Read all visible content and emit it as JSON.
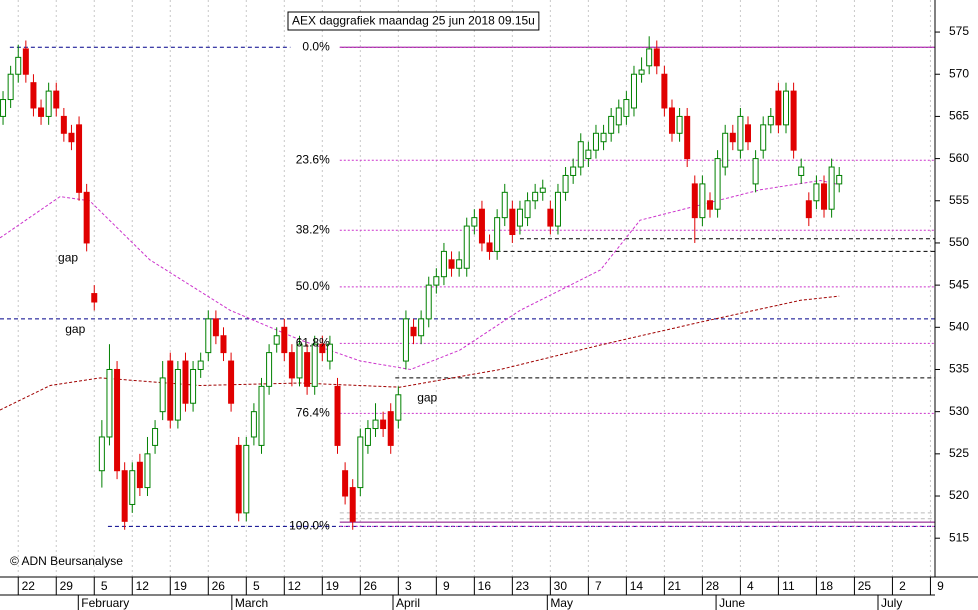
{
  "chart_data": {
    "type": "candlestick",
    "title": "AEX daggrafiek maandag 25 jun 2018 09.15u",
    "copyright": "© ADN Beursanalyse",
    "xlim": [
      -0.4,
      122.6
    ],
    "ylim": [
      510.4,
      578.8
    ],
    "yticks": [
      515,
      520,
      525,
      530,
      535,
      540,
      545,
      550,
      555,
      560,
      565,
      570,
      575
    ],
    "xticks": [
      {
        "value": 2,
        "label": "22"
      },
      {
        "value": 7,
        "label": "29"
      },
      {
        "value": 12,
        "label": "5"
      },
      {
        "value": 17,
        "label": "12"
      },
      {
        "value": 22,
        "label": "19"
      },
      {
        "value": 27,
        "label": "26"
      },
      {
        "value": 32,
        "label": "5"
      },
      {
        "value": 37,
        "label": "12"
      },
      {
        "value": 42,
        "label": "19"
      },
      {
        "value": 47,
        "label": "26"
      },
      {
        "value": 52,
        "label": "3"
      },
      {
        "value": 57,
        "label": "9"
      },
      {
        "value": 62,
        "label": "16"
      },
      {
        "value": 67,
        "label": "23"
      },
      {
        "value": 72,
        "label": "30"
      },
      {
        "value": 77,
        "label": "7"
      },
      {
        "value": 82,
        "label": "14"
      },
      {
        "value": 87,
        "label": "21"
      },
      {
        "value": 92,
        "label": "28"
      },
      {
        "value": 97,
        "label": "4"
      },
      {
        "value": 102,
        "label": "11"
      },
      {
        "value": 107,
        "label": "18"
      },
      {
        "value": 112,
        "label": "25"
      },
      {
        "value": 117,
        "label": "2"
      },
      {
        "value": 122,
        "label": "9"
      }
    ],
    "months": [
      {
        "value": 9.9,
        "label": "February"
      },
      {
        "value": 30.1,
        "label": "March"
      },
      {
        "value": 51.3,
        "label": "April"
      },
      {
        "value": 71.6,
        "label": "May"
      },
      {
        "value": 93.8,
        "label": "June"
      },
      {
        "value": 115.1,
        "label": "July"
      }
    ],
    "grid": true,
    "up_color": "#008000",
    "down_color": "#e00000",
    "open": [
      565,
      567,
      570,
      573,
      569,
      566,
      565,
      568,
      565,
      563,
      564,
      556,
      544,
      523,
      527,
      535,
      523,
      519,
      524,
      521,
      526,
      530,
      536,
      529,
      536,
      531,
      535,
      537,
      541,
      539,
      536,
      526,
      518,
      527,
      526,
      533,
      538,
      540,
      537,
      534,
      537,
      533,
      538,
      536,
      533,
      523,
      521,
      521,
      526,
      528,
      529,
      530,
      529,
      536,
      540,
      539,
      541,
      545,
      546,
      548,
      547,
      547,
      552,
      554,
      550,
      549,
      553,
      554,
      552,
      553,
      555,
      556,
      554,
      552,
      556,
      558,
      559,
      560,
      561,
      562,
      563,
      564,
      565,
      566,
      570,
      571,
      573,
      570,
      566,
      563,
      565,
      557,
      553,
      555,
      554,
      559,
      563,
      561,
      564,
      557,
      561,
      564,
      568,
      564,
      568,
      558,
      555,
      555,
      557,
      554,
      557
    ],
    "high": [
      568,
      571,
      573.5,
      574,
      570,
      567,
      569,
      569,
      566,
      564,
      565,
      557,
      545,
      529,
      538,
      536,
      524,
      524,
      525,
      527,
      529,
      536,
      537,
      536,
      537,
      536,
      537,
      542,
      542,
      540,
      537,
      527,
      527,
      531,
      534,
      538,
      540,
      541,
      538,
      539,
      538,
      539,
      539,
      539,
      534,
      524,
      522,
      528,
      529,
      531,
      530,
      531,
      533,
      542,
      541,
      542,
      546,
      547,
      550,
      549,
      549,
      553,
      554,
      555,
      551,
      554,
      557,
      555,
      555,
      556,
      557,
      557.5,
      555,
      557,
      559,
      560,
      563,
      562,
      564,
      564,
      566,
      567,
      568,
      571,
      572,
      574.5,
      574,
      571,
      567,
      566,
      566,
      558,
      558,
      556,
      561,
      564,
      564,
      566,
      565,
      561,
      565,
      566,
      569,
      569,
      569,
      560,
      556,
      558,
      558,
      560,
      559
    ],
    "low": [
      564,
      566,
      569,
      569,
      565,
      564,
      564,
      565,
      562,
      561,
      555,
      549,
      542,
      521,
      526,
      522,
      516,
      518,
      520,
      520,
      525,
      529,
      528,
      528,
      530,
      530,
      534,
      536,
      538,
      536,
      530,
      517,
      517,
      526,
      525,
      532,
      537,
      536,
      533,
      533,
      532,
      532,
      536,
      535,
      525,
      519,
      516,
      520,
      525,
      527,
      527,
      525,
      528,
      535,
      538,
      538,
      540,
      544,
      545,
      546,
      546,
      546,
      551,
      549,
      548,
      548,
      552,
      550,
      551,
      552,
      554,
      555,
      551,
      551,
      555,
      557,
      558,
      559,
      560,
      561,
      562,
      563,
      564,
      565,
      569,
      570,
      570,
      565,
      562,
      562,
      559,
      550,
      552,
      553,
      553,
      558,
      561,
      560,
      561,
      556,
      560,
      563,
      563,
      563,
      560,
      557,
      552,
      554,
      553,
      553,
      556
    ],
    "close": [
      567,
      570,
      572,
      570,
      566,
      565,
      568,
      566,
      563,
      562,
      556,
      550,
      543,
      527,
      535,
      523,
      517,
      523,
      521,
      525,
      528,
      534,
      529,
      535,
      531,
      535,
      536,
      541,
      539,
      537,
      531,
      518,
      526,
      530,
      533,
      537,
      539,
      537,
      534,
      538,
      533,
      538,
      537,
      538,
      526,
      520,
      517,
      527,
      528,
      529,
      528,
      526,
      532,
      541,
      539,
      541,
      545,
      546,
      549,
      547,
      548,
      552,
      553,
      550,
      549,
      553,
      556,
      551,
      554,
      555,
      556,
      556.5,
      552,
      556,
      558,
      559,
      562,
      561,
      563,
      563,
      565,
      566,
      567,
      570,
      570.5,
      573,
      571,
      566,
      563,
      565,
      560,
      553,
      557,
      554,
      560,
      563,
      562,
      565,
      562,
      560,
      564,
      565,
      564,
      568,
      561,
      559,
      553,
      557,
      554,
      559,
      558
    ],
    "moving_averages": [
      {
        "color": "#cc33cc",
        "x": [
          -0.4,
          7.5,
          11.4,
          19.3,
          29.9,
          39.1,
          47,
          53.6,
          60.1,
          68,
          78.6,
          83.8,
          91.7,
          99.6,
          107.5,
          110
        ],
        "values": [
          550.6,
          555.5,
          555,
          548,
          542,
          538.5,
          536,
          535,
          537.3,
          542,
          546.8,
          552.7,
          554.5,
          556.3,
          557.4,
          556.9
        ]
      },
      {
        "color": "#a00000",
        "x": [
          -0.4,
          6.2,
          12.8,
          25.9,
          39.1,
          52.2,
          65.4,
          78.6,
          91.7,
          104.9,
          110
        ],
        "values": [
          530.2,
          533.1,
          534,
          533.1,
          533.4,
          532.9,
          535,
          537.9,
          540.6,
          543.2,
          543.7
        ]
      }
    ],
    "lines": [
      {
        "value": 573.2,
        "x": [
          0.9,
          37.8
        ],
        "color": "#00008b",
        "dash": "4 3"
      },
      {
        "value": 573.2,
        "x": [
          44.3,
          122.6
        ],
        "color": "#800080",
        "dash": "none"
      },
      {
        "value": 541,
        "x": [
          -0.4,
          122.6
        ],
        "color": "#00008b",
        "dash": "4 3"
      },
      {
        "value": 534,
        "x": [
          51.6,
          122.6
        ],
        "color": "#000000",
        "dash": "4 3"
      },
      {
        "value": 550.5,
        "x": [
          68,
          122.6
        ],
        "color": "#000000",
        "dash": "4 3"
      },
      {
        "value": 549,
        "x": [
          64,
          122.6
        ],
        "color": "#000000",
        "dash": "4 3"
      },
      {
        "value": 518,
        "x": [
          44.3,
          122.6
        ],
        "color": "#bbbbbb",
        "dash": "4 3"
      },
      {
        "value": 517.3,
        "x": [
          44.3,
          122.6
        ],
        "color": "#bbbbbb",
        "dash": "4 3"
      },
      {
        "value": 516.9,
        "x": [
          44.3,
          122.6
        ],
        "color": "#800080",
        "dash": "none"
      },
      {
        "value": 516.4,
        "x": [
          13.8,
          122.6
        ],
        "color": "#00008b",
        "dash": "4 3"
      }
    ],
    "fib_color": "#cc33cc",
    "fib_x": [
      44.3,
      122.6
    ],
    "fib_levels": [
      {
        "value": 573.2,
        "label": "0.0%"
      },
      {
        "value": 559.8,
        "label": "23.6%"
      },
      {
        "value": 551.5,
        "label": "38.2%"
      },
      {
        "value": 544.8,
        "label": "50.0%"
      },
      {
        "value": 538.1,
        "label": "61.8%"
      },
      {
        "value": 529.8,
        "label": "76.4%"
      },
      {
        "value": 516.4,
        "label": "100.0%"
      }
    ],
    "annotations": [
      {
        "text": "gap",
        "x": 8.55,
        "y": 548.2,
        "color": "#aaaaaa"
      },
      {
        "text": "gap",
        "x": 9.5,
        "y": 539.7,
        "color": "#aaaaaa"
      },
      {
        "text": "gap",
        "x": 55.8,
        "y": 531.6,
        "color": "#000000"
      }
    ]
  }
}
